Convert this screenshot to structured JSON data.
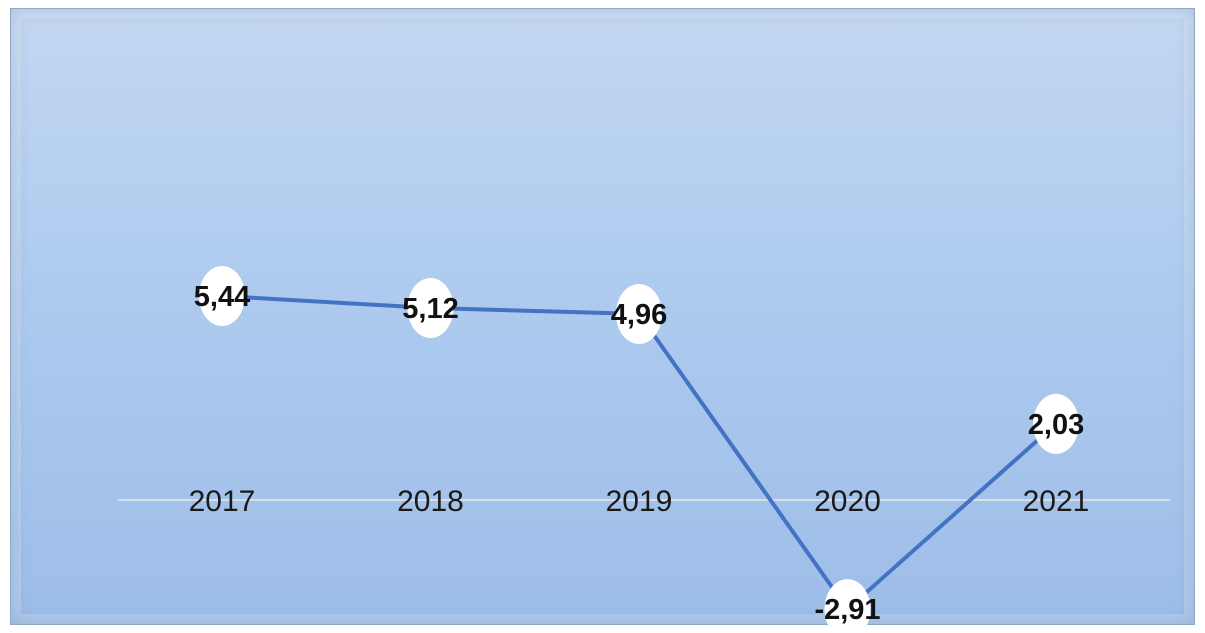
{
  "chart_data": {
    "type": "line",
    "categories": [
      "2017",
      "2018",
      "2019",
      "2020",
      "2021"
    ],
    "series": [
      {
        "values": [
          5.44,
          5.12,
          4.96,
          -2.91,
          2.03
        ],
        "labels": [
          "5,44",
          "5,12",
          "4,96",
          "-2,91",
          "2,03"
        ],
        "color": "#4472c4"
      }
    ],
    "ylim": [
      -4,
      12
    ],
    "grid": false,
    "legend": "none",
    "axis_color": "#d9dee6",
    "marker_color": "#ffffff"
  }
}
